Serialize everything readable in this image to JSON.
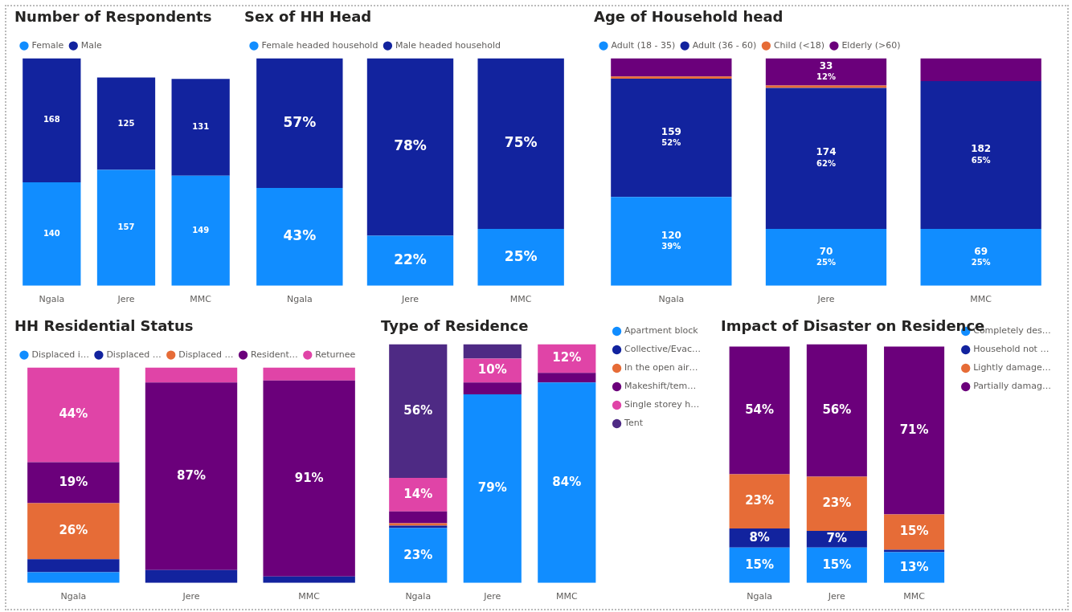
{
  "chart_data": [
    {
      "type": "bar",
      "title": "Number of Respondents",
      "categories": [
        "Ngala",
        "Jere",
        "MMC"
      ],
      "stacked": true,
      "legend": "top left",
      "tick_labels": "x",
      "data_labels": true,
      "series": [
        {
          "name": "Female",
          "color": "#118dff",
          "values": [
            140,
            157,
            149
          ]
        },
        {
          "name": "Male",
          "color": "#12239e",
          "values": [
            168,
            125,
            131
          ]
        }
      ]
    },
    {
      "type": "bar",
      "title": "Sex of HH Head",
      "categories": [
        "Ngala",
        "Jere",
        "MMC"
      ],
      "stacked": true,
      "legend": "top left",
      "tick_labels": "x",
      "series": [
        {
          "name": "Female headed household",
          "color": "#118dff",
          "values": [
            43,
            22,
            25
          ],
          "value_labels": [
            "43%",
            "22%",
            "25%"
          ]
        },
        {
          "name": "Male headed household",
          "color": "#12239e",
          "values": [
            57,
            78,
            75
          ],
          "value_labels": [
            "57%",
            "78%",
            "75%"
          ]
        }
      ]
    },
    {
      "type": "bar",
      "title": "Age of Household head",
      "categories": [
        "Ngala",
        "Jere",
        "MMC"
      ],
      "stacked": true,
      "legend": "top left",
      "tick_labels": "x",
      "series": [
        {
          "name": "Adult (18 - 35)",
          "color": "#118dff",
          "values": [
            39,
            25,
            25
          ],
          "value_labels": [
            "120\n39%",
            "70\n25%",
            "69\n25%"
          ]
        },
        {
          "name": "Adult (36 - 60)",
          "color": "#12239e",
          "values": [
            52,
            62,
            65
          ],
          "value_labels": [
            "159\n52%",
            "174\n62%",
            "182\n65%"
          ]
        },
        {
          "name": "Child (<18)",
          "color": "#e66c37",
          "values": [
            1,
            1,
            0
          ]
        },
        {
          "name": "Elderly (>60)",
          "color": "#6b007b",
          "values": [
            8,
            12,
            10
          ],
          "value_labels": [
            null,
            "33\n12%",
            null
          ]
        }
      ]
    },
    {
      "type": "bar",
      "title": "HH Residential Status",
      "categories": [
        "Ngala",
        "Jere",
        "MMC"
      ],
      "stacked": true,
      "legend": "top left",
      "tick_labels": "x",
      "series": [
        {
          "name": "Displaced i…",
          "color": "#118dff",
          "values": [
            5,
            0,
            0
          ]
        },
        {
          "name": "Displaced …",
          "color": "#12239e",
          "values": [
            6,
            6,
            3
          ]
        },
        {
          "name": "Displaced …",
          "color": "#e66c37",
          "values": [
            26,
            0,
            0
          ],
          "value_labels": [
            "26%",
            null,
            null
          ]
        },
        {
          "name": "Resident…",
          "color": "#6b007b",
          "values": [
            19,
            87,
            91
          ],
          "value_labels": [
            "19%",
            "87%",
            "91%"
          ]
        },
        {
          "name": "Returnee",
          "color": "#e044a7",
          "values": [
            44,
            7,
            6
          ],
          "value_labels": [
            "44%",
            null,
            null
          ]
        }
      ]
    },
    {
      "type": "bar",
      "title": "Type of Residence",
      "categories": [
        "Ngala",
        "Jere",
        "MMC"
      ],
      "stacked": true,
      "legend": "right",
      "tick_labels": "x",
      "series": [
        {
          "name": "Apartment block",
          "color": "#118dff",
          "values": [
            23,
            79,
            84
          ],
          "value_labels": [
            "23%",
            "79%",
            "84%"
          ]
        },
        {
          "name": "Collective/Evac…",
          "color": "#12239e",
          "values": [
            1,
            0,
            0
          ]
        },
        {
          "name": "In the open air…",
          "color": "#e66c37",
          "values": [
            1,
            0,
            0
          ]
        },
        {
          "name": "Makeshift/tem…",
          "color": "#6b007b",
          "values": [
            5,
            5,
            4
          ]
        },
        {
          "name": "Single storey h…",
          "color": "#e044a7",
          "values": [
            14,
            10,
            12
          ],
          "value_labels": [
            "14%",
            "10%",
            "12%"
          ]
        },
        {
          "name": "Tent",
          "color": "#4e2a84",
          "values": [
            56,
            6,
            0
          ],
          "value_labels": [
            "56%",
            null,
            null
          ]
        }
      ]
    },
    {
      "type": "bar",
      "title": "Impact of Disaster on Residence",
      "categories": [
        "Ngala",
        "Jere",
        "MMC"
      ],
      "stacked": true,
      "legend": "right",
      "tick_labels": "x",
      "series": [
        {
          "name": "Completely des…",
          "color": "#118dff",
          "values": [
            15,
            15,
            13
          ],
          "value_labels": [
            "15%",
            "15%",
            "13%"
          ]
        },
        {
          "name": "Household not …",
          "color": "#12239e",
          "values": [
            8,
            7,
            1
          ],
          "value_labels": [
            "8%",
            "7%",
            null
          ]
        },
        {
          "name": "Lightly damage…",
          "color": "#e66c37",
          "values": [
            23,
            23,
            15
          ],
          "value_labels": [
            "23%",
            "23%",
            "15%"
          ]
        },
        {
          "name": "Partially damag…",
          "color": "#6b007b",
          "values": [
            54,
            56,
            71
          ],
          "value_labels": [
            "54%",
            "56%",
            "71%"
          ]
        }
      ]
    }
  ]
}
